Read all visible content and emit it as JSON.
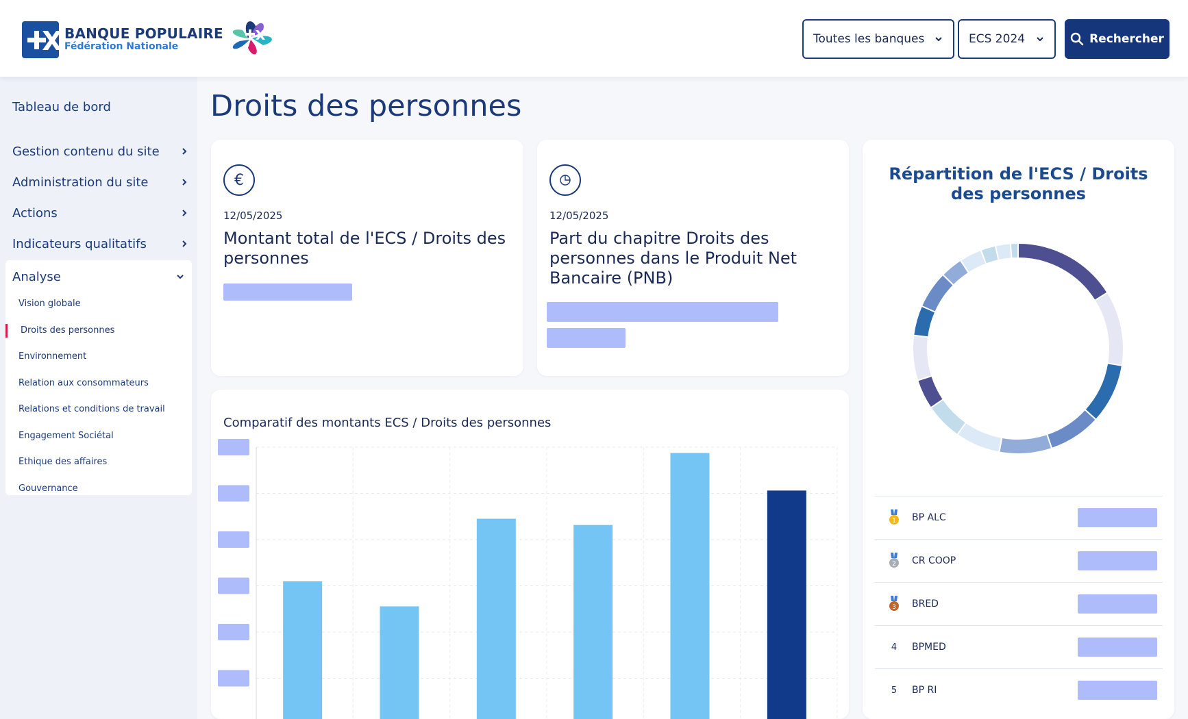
{
  "brand": {
    "title": "BANQUE POPULAIRE",
    "subtitle": "Fédération Nationale"
  },
  "header": {
    "bank_select": "Toutes les banques",
    "ecs_select": "ECS 2024",
    "search_label": "Rechercher"
  },
  "sidebar": {
    "dashboard": "Tableau de bord",
    "items": [
      {
        "label": "Gestion contenu du site"
      },
      {
        "label": "Administration du site"
      },
      {
        "label": "Actions"
      },
      {
        "label": "Indicateurs qualitatifs"
      }
    ],
    "analyse": {
      "label": "Analyse",
      "subitems": [
        {
          "label": "Vision globale"
        },
        {
          "label": "Droits des personnes"
        },
        {
          "label": "Environnement"
        },
        {
          "label": "Relation aux consommateurs"
        },
        {
          "label": "Relations et conditions de travail"
        },
        {
          "label": "Engagement Sociétal"
        },
        {
          "label": "Ethique des affaires"
        },
        {
          "label": "Gouvernance"
        }
      ],
      "active_index": 1
    }
  },
  "main": {
    "page_title": "Droits des personnes",
    "kpi_total": {
      "icon": "euro-icon",
      "date": "12/05/2025",
      "title": "Montant total de l'ECS / Droits des personnes"
    },
    "kpi_share": {
      "icon": "pie-chart-icon",
      "date": "12/05/2025",
      "title": "Part du chapitre Droits des personnes dans le Produit Net Bancaire (PNB)"
    },
    "distribution": {
      "title": "Répartition de l'ECS / Droits des personnes",
      "ranking": [
        {
          "rank": "1",
          "name": "BP ALC",
          "icon": "gold-medal-icon"
        },
        {
          "rank": "2",
          "name": "CR COOP",
          "icon": "silver-medal-icon"
        },
        {
          "rank": "3",
          "name": "BRED",
          "icon": "bronze-medal-icon"
        },
        {
          "rank": "4",
          "name": "BPMED",
          "icon": ""
        },
        {
          "rank": "5",
          "name": "BP RI",
          "icon": ""
        }
      ]
    },
    "comparison": {
      "title": "Comparatif des montants ECS / Droits des personnes"
    }
  },
  "colors": {
    "primary": "#16367c",
    "accent_active": "#d81b4a",
    "bar_light": "#74c5f4",
    "bar_dark": "#123a8a",
    "placeholder": "#aebcfb"
  },
  "chart_data": [
    {
      "type": "pie",
      "title": "Répartition de l'ECS / Droits des personnes",
      "values": [
        14,
        10,
        8,
        7,
        7,
        6,
        5,
        4,
        6,
        4,
        5,
        3,
        3,
        2,
        2,
        1
      ],
      "colors": [
        "#4e4f91",
        "#e6e7f4",
        "#2a6cad",
        "#6a8bc6",
        "#92acd9",
        "#dce9f6",
        "#c2dcec",
        "#4e4f91",
        "#e6e7f4",
        "#2a6cad",
        "#6a8bc6",
        "#92acd9",
        "#dce9f6",
        "#c2dcec",
        "#dce9f6",
        "#c2dcec"
      ]
    },
    {
      "type": "bar",
      "title": "Comparatif des montants ECS / Droits des personnes",
      "values": [
        220,
        180,
        320,
        310,
        425,
        365
      ],
      "highlight_index": 5,
      "gridlines": 6,
      "note": "axis tick labels are masked by placeholder blocks"
    }
  ]
}
